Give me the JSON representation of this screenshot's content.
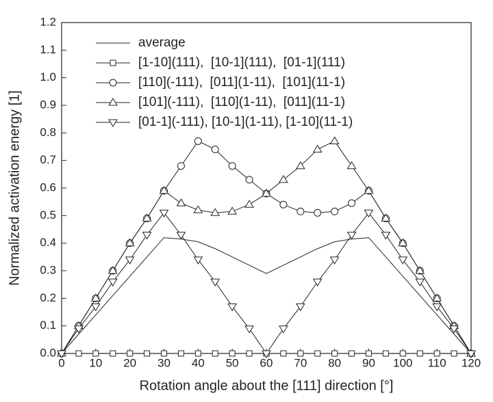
{
  "chart_data": {
    "type": "line",
    "xlabel": "Rotation angle about the [111] direction [°]",
    "ylabel": "Normalized activation energy [1]",
    "x": [
      0,
      5,
      10,
      15,
      20,
      25,
      30,
      35,
      40,
      45,
      50,
      55,
      60,
      65,
      70,
      75,
      80,
      85,
      90,
      95,
      100,
      105,
      110,
      115,
      120
    ],
    "xlim": [
      0,
      120
    ],
    "xticks": [
      0,
      10,
      20,
      30,
      40,
      50,
      60,
      70,
      80,
      90,
      100,
      110,
      120
    ],
    "ylim": [
      0,
      1.2
    ],
    "yticks": [
      {
        "value": 0,
        "label": "0.0"
      },
      0.1,
      0.2,
      0.3,
      0.4,
      0.5,
      0.6,
      0.7,
      0.8,
      0.9,
      {
        "value": 1,
        "label": "1.0"
      },
      1.1,
      1.2
    ],
    "legend": "upper left",
    "series": [
      {
        "name": "average",
        "color": "#222222",
        "marker": "none",
        "values": [
          0,
          0.07,
          0.14,
          0.21,
          0.28,
          0.35,
          0.42,
          0.415,
          0.405,
          0.38,
          0.35,
          0.32,
          0.29,
          0.32,
          0.35,
          0.38,
          0.405,
          0.415,
          0.42,
          0.35,
          0.28,
          0.21,
          0.14,
          0.07,
          0
        ]
      },
      {
        "name": "[1-10](111),  [10-1](111),  [01-1](111)",
        "color": "#222222",
        "marker": "square",
        "values": [
          0,
          0,
          0,
          0,
          0,
          0,
          0,
          0,
          0,
          0,
          0,
          0,
          0,
          0,
          0,
          0,
          0,
          0,
          0,
          0,
          0,
          0,
          0,
          0,
          0
        ]
      },
      {
        "name": "[110](-111),  [011](1-11),  [101](11-1)",
        "color": "#222222",
        "marker": "circle",
        "values": [
          0,
          0.1,
          0.2,
          0.3,
          0.4,
          0.49,
          0.59,
          0.68,
          0.77,
          0.74,
          0.68,
          0.63,
          0.58,
          0.54,
          0.515,
          0.51,
          0.515,
          0.545,
          0.59,
          0.49,
          0.4,
          0.3,
          0.2,
          0.1,
          0
        ]
      },
      {
        "name": "[101](-111),  [110](1-11),  [011](11-1)",
        "color": "#222222",
        "marker": "triangle-up",
        "values": [
          0,
          0.1,
          0.2,
          0.3,
          0.4,
          0.49,
          0.59,
          0.545,
          0.52,
          0.51,
          0.515,
          0.54,
          0.58,
          0.63,
          0.68,
          0.74,
          0.77,
          0.68,
          0.59,
          0.49,
          0.4,
          0.3,
          0.2,
          0.1,
          0
        ]
      },
      {
        "name": "[01-1](-111), [10-1](1-11), [1-10](11-1)",
        "color": "#222222",
        "marker": "triangle-down",
        "values": [
          0,
          0.09,
          0.17,
          0.26,
          0.34,
          0.43,
          0.51,
          0.43,
          0.34,
          0.26,
          0.17,
          0.09,
          0,
          0.09,
          0.17,
          0.26,
          0.34,
          0.43,
          0.51,
          0.43,
          0.34,
          0.26,
          0.17,
          0.09,
          0
        ]
      }
    ]
  }
}
